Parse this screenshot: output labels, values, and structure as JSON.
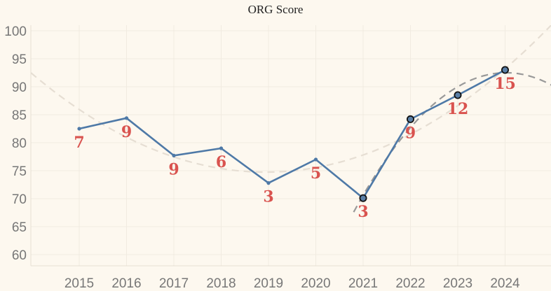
{
  "title": "ORG Score",
  "chart_data": {
    "type": "line",
    "title": "ORG Score",
    "xlabel": "",
    "ylabel": "",
    "x": [
      2015,
      2016,
      2017,
      2018,
      2019,
      2020,
      2021,
      2022,
      2023,
      2024
    ],
    "ylim": [
      58,
      101
    ],
    "yticks": [
      60,
      65,
      70,
      75,
      80,
      85,
      90,
      95,
      100
    ],
    "series": [
      {
        "values": [
          82.5,
          84.4,
          77.7,
          79.0,
          72.8,
          77.0,
          70.1,
          84.2,
          88.5,
          93.0
        ],
        "point_labels": [
          "7",
          "9",
          "9",
          "6",
          "3",
          "5",
          "3",
          "9",
          "12",
          "15"
        ],
        "highlighted": [
          false,
          false,
          false,
          false,
          false,
          false,
          true,
          true,
          true,
          true
        ],
        "color": "#4e79a7"
      }
    ],
    "trendlines": [
      {
        "style": "dashed",
        "color": "#e6ded3",
        "shape": "quadratic over all years"
      },
      {
        "style": "dashed",
        "color": "#999999",
        "shape": "quadratic over 2021-2024"
      }
    ],
    "grid": true,
    "legend": "none"
  }
}
